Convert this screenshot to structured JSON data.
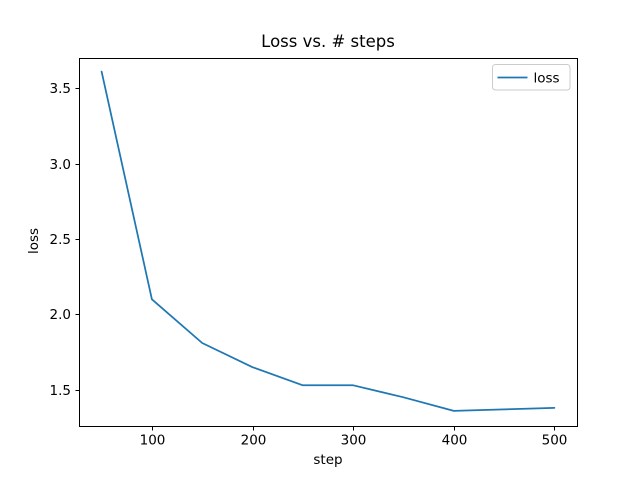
{
  "chart_data": {
    "type": "line",
    "title": "Loss vs. # steps",
    "xlabel": "step",
    "ylabel": "loss",
    "x": [
      50,
      100,
      150,
      200,
      250,
      300,
      350,
      400,
      450,
      500
    ],
    "series": [
      {
        "name": "loss",
        "color": "#1f77b4",
        "values": [
          3.61,
          2.1,
          1.81,
          1.65,
          1.53,
          1.53,
          1.45,
          1.36,
          1.37,
          1.38
        ]
      }
    ],
    "xlim": [
      27.5,
      522.5
    ],
    "ylim": [
      1.26,
      3.7
    ],
    "x_ticks": {
      "values": [
        100,
        200,
        300,
        400,
        500
      ],
      "labels": [
        "100",
        "200",
        "300",
        "400",
        "500"
      ]
    },
    "y_ticks": {
      "values": [
        1.5,
        2.0,
        2.5,
        3.0,
        3.5
      ],
      "labels": [
        "1.5",
        "2.0",
        "2.5",
        "3.0",
        "3.5"
      ]
    },
    "legend": {
      "position": "upper right",
      "entries": [
        {
          "label": "loss",
          "color": "#1f77b4"
        }
      ]
    },
    "grid": false,
    "background": "#ffffff",
    "axis_color": "#000000",
    "text_color": "#000000",
    "legend_border_color": "#cccccc"
  }
}
